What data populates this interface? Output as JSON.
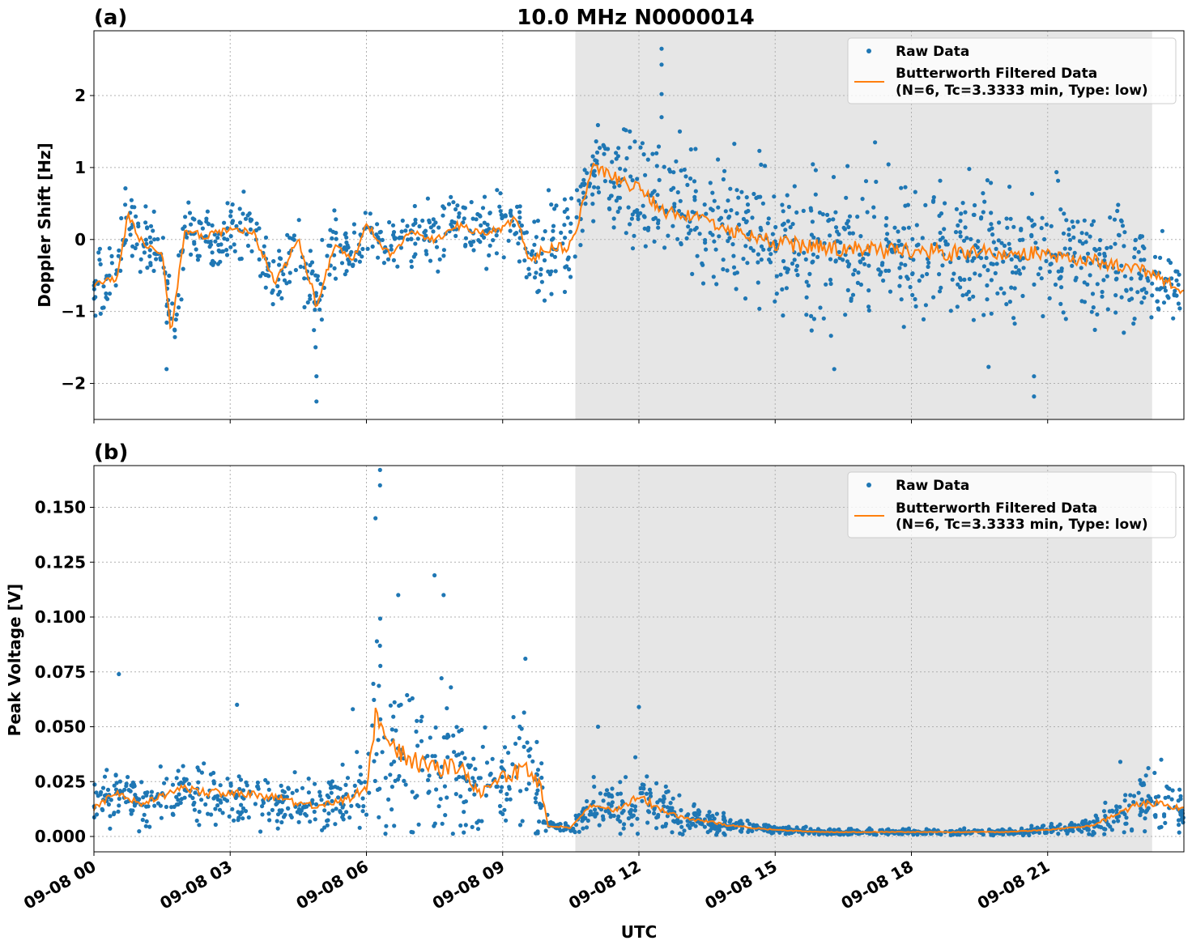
{
  "figure": {
    "title": "10.0 MHz N0000014",
    "xlabel": "UTC",
    "colors": {
      "raw": "#1f77b4",
      "filtered": "#ff7f0e",
      "shade": "#e6e6e6",
      "grid": "#b0b0b0"
    }
  },
  "legend": {
    "raw_label": "Raw Data",
    "filtered_line1": "Butterworth Filtered Data",
    "filtered_line2": "(N=6, Tc=3.3333 min, Type: low)"
  },
  "chart_data": [
    {
      "type": "scatter",
      "panel_label": "(a)",
      "title": "10.0 MHz N0000014",
      "xlabel": "",
      "ylabel": "Doppler Shift [Hz]",
      "x_unit": "UTC hours on 09-08",
      "xlim": [
        "09-08 00:00",
        "09-09 00:00"
      ],
      "ylim": [
        -2.5,
        2.9
      ],
      "yticks": [
        -2,
        -1,
        0,
        1,
        2
      ],
      "ytick_labels": [
        "−2",
        "−1",
        "0",
        "1",
        "2"
      ],
      "shaded_region": [
        "09-08 10:36",
        "09-08 23:18"
      ],
      "grid": true,
      "legend_position": "top-right",
      "series": [
        {
          "name": "Raw Data",
          "kind": "scatter",
          "x_hours": [
            0,
            0.5,
            0.75,
            1,
            1.5,
            1.7,
            2,
            2.5,
            3,
            3.5,
            4,
            4.5,
            4.9,
            5.3,
            5.7,
            6,
            6.5,
            7,
            7.5,
            8,
            8.5,
            9,
            9.3,
            9.6,
            10,
            10.5,
            11,
            11.5,
            12,
            12.5,
            13,
            14,
            15,
            16,
            17,
            18,
            19,
            20,
            21,
            22,
            23,
            24
          ],
          "center": [
            -0.6,
            -0.55,
            0.35,
            0.0,
            -0.2,
            -1.3,
            0.1,
            0.05,
            0.15,
            0.1,
            -0.6,
            0.0,
            -0.9,
            -0.1,
            -0.3,
            0.2,
            -0.2,
            0.1,
            0.0,
            0.2,
            0.1,
            0.15,
            0.3,
            -0.3,
            -0.1,
            -0.1,
            1.0,
            0.85,
            0.7,
            0.4,
            0.35,
            0.15,
            -0.05,
            -0.1,
            -0.15,
            -0.15,
            -0.2,
            -0.2,
            -0.2,
            -0.3,
            -0.4,
            -0.7
          ],
          "spread": [
            0.35,
            0.3,
            0.35,
            0.3,
            0.3,
            0.4,
            0.3,
            0.3,
            0.3,
            0.3,
            0.35,
            0.3,
            0.45,
            0.3,
            0.3,
            0.3,
            0.3,
            0.3,
            0.3,
            0.3,
            0.3,
            0.3,
            0.3,
            0.35,
            0.45,
            0.5,
            0.45,
            0.5,
            0.5,
            0.55,
            0.55,
            0.6,
            0.65,
            0.7,
            0.7,
            0.7,
            0.7,
            0.7,
            0.65,
            0.55,
            0.45,
            0.4
          ],
          "outliers": [
            [
              12.5,
              2.65
            ],
            [
              12.5,
              2.43
            ],
            [
              12.5,
              2.02
            ],
            [
              12.5,
              1.7
            ],
            [
              4.9,
              -2.25
            ],
            [
              4.9,
              -1.9
            ],
            [
              1.6,
              -1.8
            ],
            [
              20.7,
              -2.18
            ],
            [
              20.7,
              -1.9
            ],
            [
              19.7,
              -1.77
            ],
            [
              16.3,
              -1.8
            ],
            [
              12.9,
              1.5
            ],
            [
              14.1,
              1.33
            ],
            [
              17.2,
              1.35
            ],
            [
              11.8,
              1.5
            ]
          ]
        },
        {
          "name": "Butterworth Filtered Data (N=6, Tc=3.3333 min, Type: low)",
          "kind": "line",
          "x_hours": [
            0,
            0.5,
            0.75,
            1,
            1.5,
            1.7,
            2,
            2.5,
            3,
            3.5,
            4,
            4.5,
            4.9,
            5.3,
            5.7,
            6,
            6.5,
            7,
            7.5,
            8,
            8.5,
            9,
            9.3,
            9.6,
            10,
            10.5,
            11,
            11.5,
            12,
            12.5,
            13,
            14,
            15,
            16,
            17,
            18,
            19,
            20,
            21,
            22,
            23,
            24
          ],
          "values": [
            -0.6,
            -0.55,
            0.35,
            0.0,
            -0.2,
            -1.3,
            0.1,
            0.05,
            0.15,
            0.1,
            -0.6,
            0.0,
            -0.9,
            -0.1,
            -0.3,
            0.2,
            -0.2,
            0.1,
            0.0,
            0.2,
            0.1,
            0.15,
            0.3,
            -0.3,
            -0.1,
            -0.1,
            1.0,
            0.85,
            0.7,
            0.4,
            0.35,
            0.15,
            -0.05,
            -0.1,
            -0.15,
            -0.15,
            -0.2,
            -0.2,
            -0.2,
            -0.3,
            -0.4,
            -0.7
          ]
        }
      ]
    },
    {
      "type": "scatter",
      "panel_label": "(b)",
      "title": "",
      "xlabel": "UTC",
      "ylabel": "Peak Voltage [V]",
      "x_unit": "UTC hours on 09-08",
      "xlim": [
        "09-08 00:00",
        "09-09 00:00"
      ],
      "ylim": [
        -0.007,
        0.169
      ],
      "yticks": [
        0,
        0.025,
        0.05,
        0.075,
        0.1,
        0.125,
        0.15
      ],
      "ytick_labels": [
        "0.000",
        "0.025",
        "0.050",
        "0.075",
        "0.100",
        "0.125",
        "0.150"
      ],
      "xticks": [
        "09-08 00",
        "09-08 03",
        "09-08 06",
        "09-08 09",
        "09-08 12",
        "09-08 15",
        "09-08 18",
        "09-08 21"
      ],
      "shaded_region": [
        "09-08 10:36",
        "09-08 23:18"
      ],
      "grid": true,
      "legend_position": "top-right",
      "series": [
        {
          "name": "Raw Data",
          "kind": "scatter",
          "x_hours": [
            0,
            0.5,
            1,
            2,
            2.5,
            3,
            4,
            4.5,
            5,
            5.5,
            6,
            6.2,
            6.5,
            7,
            7.5,
            8,
            8.5,
            9,
            9.5,
            9.8,
            10,
            10.5,
            11,
            11.5,
            12,
            12.5,
            13,
            13.5,
            14,
            15,
            16,
            17,
            18,
            19,
            20,
            21,
            22,
            22.5,
            23,
            23.5,
            24
          ],
          "center": [
            0.013,
            0.02,
            0.015,
            0.022,
            0.02,
            0.02,
            0.018,
            0.015,
            0.014,
            0.016,
            0.022,
            0.055,
            0.042,
            0.035,
            0.03,
            0.032,
            0.02,
            0.028,
            0.03,
            0.025,
            0.005,
            0.004,
            0.015,
            0.012,
            0.018,
            0.012,
            0.008,
            0.007,
            0.005,
            0.003,
            0.002,
            0.002,
            0.002,
            0.002,
            0.002,
            0.003,
            0.005,
            0.01,
            0.015,
            0.015,
            0.012
          ],
          "spread": [
            0.007,
            0.009,
            0.008,
            0.01,
            0.01,
            0.01,
            0.009,
            0.009,
            0.008,
            0.01,
            0.012,
            0.03,
            0.028,
            0.025,
            0.025,
            0.025,
            0.015,
            0.02,
            0.025,
            0.02,
            0.002,
            0.002,
            0.008,
            0.006,
            0.012,
            0.007,
            0.005,
            0.004,
            0.003,
            0.0015,
            0.001,
            0.001,
            0.001,
            0.001,
            0.001,
            0.0015,
            0.003,
            0.006,
            0.009,
            0.01,
            0.007
          ],
          "outliers": [
            [
              6.3,
              0.167
            ],
            [
              6.3,
              0.16
            ],
            [
              6.2,
              0.145
            ],
            [
              7.5,
              0.119
            ],
            [
              7.7,
              0.11
            ],
            [
              6.7,
              0.11
            ],
            [
              3.15,
              0.06
            ],
            [
              9.5,
              0.081
            ],
            [
              0.55,
              0.074
            ],
            [
              12,
              0.059
            ],
            [
              11.1,
              0.05
            ],
            [
              5.7,
              0.058
            ],
            [
              23.5,
              0.035
            ],
            [
              22.6,
              0.034
            ]
          ]
        },
        {
          "name": "Butterworth Filtered Data (N=6, Tc=3.3333 min, Type: low)",
          "kind": "line",
          "x_hours": [
            0,
            0.5,
            1,
            2,
            2.5,
            3,
            4,
            4.5,
            5,
            5.5,
            6,
            6.2,
            6.5,
            7,
            7.5,
            8,
            8.5,
            9,
            9.5,
            9.8,
            10,
            10.5,
            11,
            11.5,
            12,
            12.5,
            13,
            13.5,
            14,
            15,
            16,
            17,
            18,
            19,
            20,
            21,
            22,
            22.5,
            23,
            23.5,
            24
          ],
          "values": [
            0.013,
            0.02,
            0.015,
            0.022,
            0.02,
            0.02,
            0.018,
            0.015,
            0.014,
            0.016,
            0.022,
            0.055,
            0.042,
            0.035,
            0.03,
            0.032,
            0.02,
            0.028,
            0.03,
            0.025,
            0.005,
            0.004,
            0.015,
            0.012,
            0.018,
            0.012,
            0.008,
            0.007,
            0.005,
            0.003,
            0.002,
            0.002,
            0.002,
            0.002,
            0.002,
            0.003,
            0.005,
            0.01,
            0.015,
            0.015,
            0.012
          ]
        }
      ]
    }
  ]
}
